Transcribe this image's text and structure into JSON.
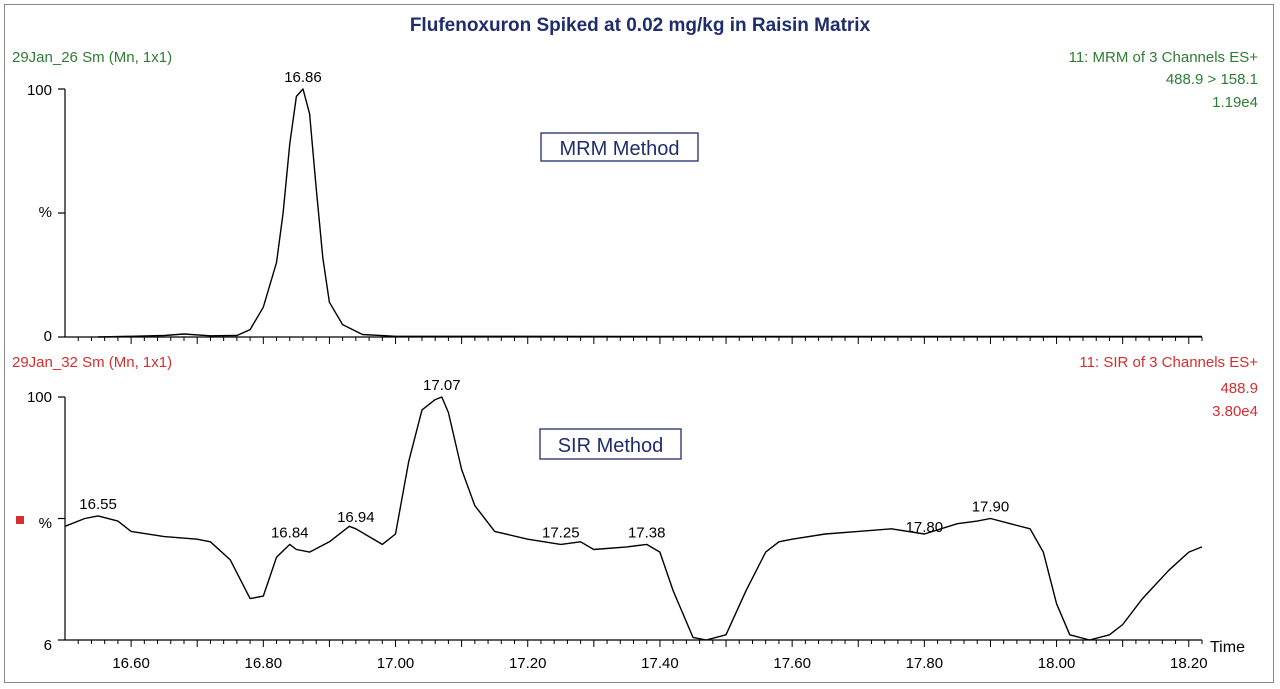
{
  "title": "Flufenoxuron Spiked at 0.02 mg/kg in Raisin Matrix",
  "colors": {
    "title": "#1f2d6e",
    "mrm": "#2e7d32",
    "sir": "#d32f2f",
    "trace": "#000000",
    "box": "#1f2d6e"
  },
  "chart_data": [
    {
      "type": "line",
      "header_left": "29Jan_26 Sm (Mn, 1x1)",
      "header_right": [
        "11: MRM of 3 Channels ES+",
        "488.9 > 158.1",
        "1.19e4"
      ],
      "method_label": "MRM Method",
      "ylabel": "%",
      "yticks": [
        "100",
        "0"
      ],
      "ylim": [
        0,
        100
      ],
      "xlim": [
        16.5,
        18.22
      ],
      "peak_labels": [
        {
          "x": 16.86,
          "y": 100,
          "text": "16.86"
        }
      ],
      "series": [
        {
          "x": [
            16.55,
            16.6,
            16.65,
            16.68,
            16.72,
            16.76,
            16.78,
            16.8,
            16.82,
            16.83,
            16.84,
            16.85,
            16.86,
            16.87,
            16.88,
            16.89,
            16.9,
            16.92,
            16.95,
            17.0,
            17.5,
            18.0,
            18.22
          ],
          "y": [
            0,
            0.3,
            0.6,
            1.2,
            0.5,
            0.6,
            3,
            12,
            30,
            50,
            78,
            97,
            100,
            90,
            60,
            32,
            14,
            5,
            1,
            0.3,
            0.2,
            0.2,
            0.2
          ]
        }
      ]
    },
    {
      "type": "line",
      "header_left": "29Jan_32 Sm (Mn, 1x1)",
      "header_right": [
        "11: SIR of 3 Channels ES+",
        "488.9",
        "3.80e4"
      ],
      "method_label": "SIR Method",
      "ylabel": "%",
      "yticks": [
        "100",
        "6"
      ],
      "ylim": [
        6,
        100
      ],
      "xlim": [
        16.5,
        18.22
      ],
      "xlabel": "Time",
      "xticks": [
        "16.60",
        "16.80",
        "17.00",
        "17.20",
        "17.40",
        "17.60",
        "17.80",
        "18.00",
        "18.20"
      ],
      "peak_labels": [
        {
          "x": 16.55,
          "y": 54,
          "text": "16.55"
        },
        {
          "x": 16.84,
          "y": 43,
          "text": "16.84"
        },
        {
          "x": 16.94,
          "y": 49,
          "text": "16.94"
        },
        {
          "x": 17.07,
          "y": 100,
          "text": "17.07"
        },
        {
          "x": 17.25,
          "y": 43,
          "text": "17.25"
        },
        {
          "x": 17.38,
          "y": 43,
          "text": "17.38"
        },
        {
          "x": 17.8,
          "y": 45,
          "text": "17.80"
        },
        {
          "x": 17.9,
          "y": 53,
          "text": "17.90"
        }
      ],
      "series": [
        {
          "x": [
            16.5,
            16.53,
            16.55,
            16.58,
            16.6,
            16.65,
            16.7,
            16.72,
            16.75,
            16.78,
            16.8,
            16.82,
            16.84,
            16.85,
            16.87,
            16.9,
            16.93,
            16.94,
            16.96,
            16.98,
            17.0,
            17.02,
            17.04,
            17.06,
            17.07,
            17.08,
            17.1,
            17.12,
            17.15,
            17.2,
            17.25,
            17.28,
            17.3,
            17.35,
            17.38,
            17.4,
            17.42,
            17.45,
            17.47,
            17.5,
            17.53,
            17.56,
            17.58,
            17.6,
            17.65,
            17.7,
            17.75,
            17.8,
            17.85,
            17.88,
            17.9,
            17.93,
            17.96,
            17.98,
            18.0,
            18.02,
            18.05,
            18.08,
            18.1,
            18.13,
            18.17,
            18.2,
            18.22
          ],
          "y": [
            50,
            53,
            54,
            52,
            48,
            46,
            45,
            44,
            37,
            22,
            23,
            38,
            43,
            41,
            40,
            44,
            50,
            49,
            46,
            43,
            47,
            75,
            95,
            99,
            100,
            94,
            72,
            58,
            48,
            45,
            43,
            44,
            41,
            42,
            43,
            40,
            25,
            7,
            6,
            8,
            25,
            40,
            44,
            45,
            47,
            48,
            49,
            47,
            51,
            52,
            53,
            51,
            49,
            40,
            20,
            8,
            6,
            8,
            12,
            22,
            33,
            40,
            42
          ]
        }
      ]
    }
  ]
}
